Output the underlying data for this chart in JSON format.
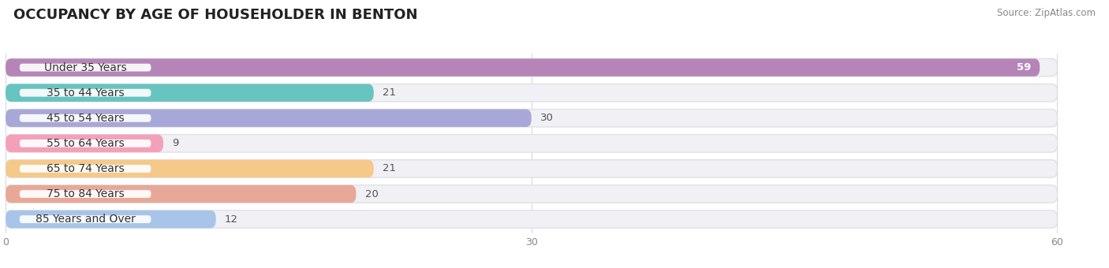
{
  "title": "OCCUPANCY BY AGE OF HOUSEHOLDER IN BENTON",
  "source": "Source: ZipAtlas.com",
  "categories": [
    "Under 35 Years",
    "35 to 44 Years",
    "45 to 54 Years",
    "55 to 64 Years",
    "65 to 74 Years",
    "75 to 84 Years",
    "85 Years and Over"
  ],
  "values": [
    59,
    21,
    30,
    9,
    21,
    20,
    12
  ],
  "bar_colors": [
    "#b585b8",
    "#67c4c0",
    "#a8a8d8",
    "#f4a0b8",
    "#f5c98a",
    "#e8a898",
    "#a8c4e8"
  ],
  "bar_bg_color": "#f0f0f5",
  "bar_bg_border_color": "#e0e0e8",
  "xlim": [
    -8,
    62
  ],
  "data_xlim": [
    0,
    60
  ],
  "xticks": [
    0,
    30,
    60
  ],
  "title_fontsize": 13,
  "label_fontsize": 10,
  "value_fontsize": 9.5,
  "background_color": "#ffffff",
  "bar_height": 0.7,
  "bar_gap": 0.3,
  "label_box_color": "#ffffff",
  "label_text_color": "#333333",
  "value_color_inside": "#ffffff",
  "value_color_outside": "#555555"
}
